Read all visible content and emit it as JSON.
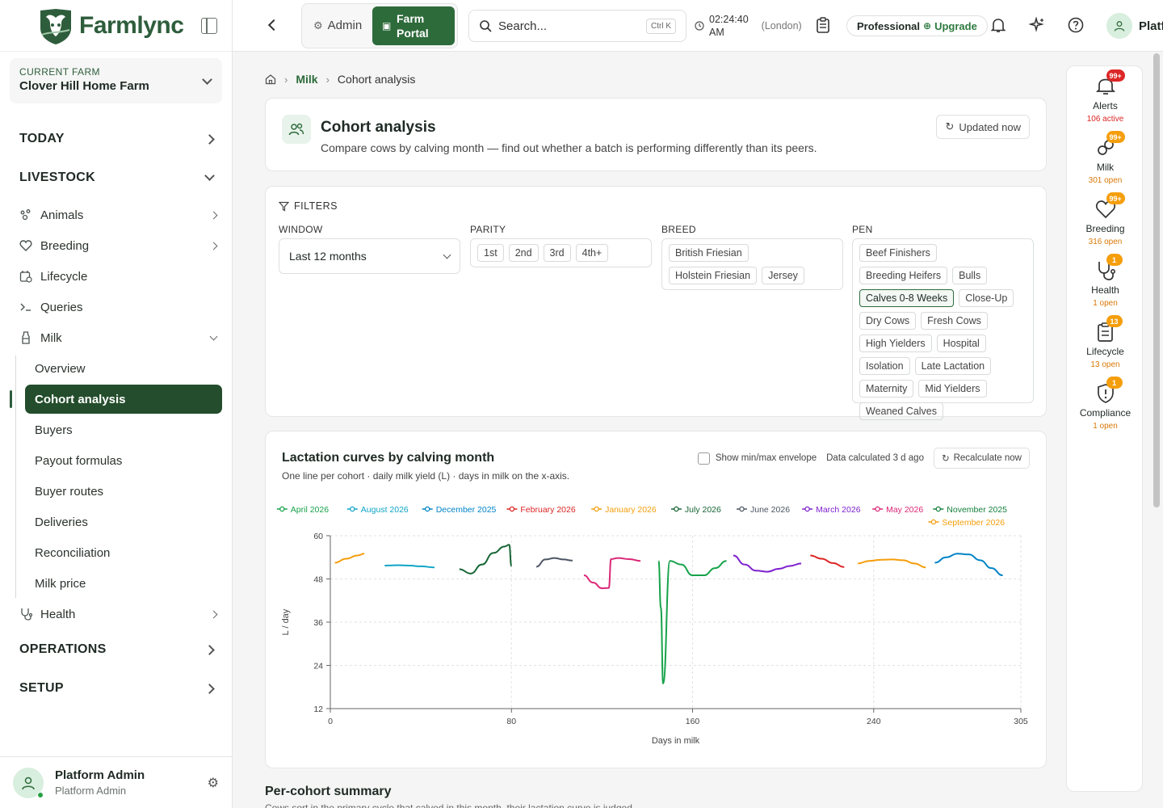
{
  "brand": {
    "name": "Farmlync"
  },
  "farm_picker": {
    "label": "CURRENT FARM",
    "value": "Clover Hill Home Farm"
  },
  "nav": {
    "today": "TODAY",
    "livestock": "LIVESTOCK",
    "items": [
      {
        "label": "Animals",
        "icon": "paw-icon"
      },
      {
        "label": "Breeding",
        "icon": "heart-icon"
      },
      {
        "label": "Lifecycle",
        "icon": "calendar-icon"
      },
      {
        "label": "Queries",
        "icon": "terminal-icon"
      },
      {
        "label": "Milk",
        "icon": "milk-bottle-icon"
      },
      {
        "label": "Health",
        "icon": "stethoscope-icon"
      }
    ],
    "milk_sub": [
      "Overview",
      "Cohort analysis",
      "Buyers",
      "Payout formulas",
      "Buyer routes",
      "Deliveries",
      "Reconciliation",
      "Milk price"
    ],
    "operations": "OPERATIONS",
    "setup": "SETUP"
  },
  "user": {
    "name": "Platform Admin",
    "role": "Platform Admin"
  },
  "topbar": {
    "admin": "Admin",
    "farm_portal_line1": "Farm",
    "farm_portal_line2": "Portal",
    "search_placeholder": "Search...",
    "search_kbd": "Ctrl K",
    "time_line1": "02:24:40",
    "time_line2": "AM",
    "timezone": "(London)",
    "plan": "Professional",
    "upgrade": "Upgrade",
    "user_chip": "Platf"
  },
  "breadcrumb": {
    "section": "Milk",
    "page": "Cohort analysis"
  },
  "header": {
    "title": "Cohort analysis",
    "subtitle": "Compare cows by calving month — find out whether a batch is performing differently than its peers.",
    "updated": "Updated now"
  },
  "filters": {
    "title": "FILTERS",
    "window_label": "WINDOW",
    "window_value": "Last 12 months",
    "parity_label": "PARITY",
    "parity": [
      "1st",
      "2nd",
      "3rd",
      "4th+"
    ],
    "breed_label": "BREED",
    "breeds": [
      "British Friesian",
      "Holstein Friesian",
      "Jersey"
    ],
    "pen_label": "PEN",
    "pens": [
      "Beef Finishers",
      "Breeding Heifers",
      "Bulls",
      "Calves 0-8 Weeks",
      "Close-Up",
      "Dry Cows",
      "Fresh Cows",
      "High Yielders",
      "Hospital",
      "Isolation",
      "Late Lactation",
      "Maternity",
      "Mid Yielders",
      "Weaned Calves"
    ],
    "pen_selected": "Calves 0-8 Weeks"
  },
  "chart_card": {
    "title": "Lactation curves by calving month",
    "subtitle": "One line per cohort · daily milk yield (L) · days in milk on the x-axis.",
    "envelope_label": "Show min/max envelope",
    "calc_status": "Data calculated 3 d ago",
    "recalc": "Recalculate now"
  },
  "chart_data": {
    "type": "line",
    "xlabel": "Days in milk",
    "ylabel": "L / day",
    "xlim": [
      0,
      305
    ],
    "ylim": [
      12,
      60
    ],
    "xticks": [
      0,
      80,
      160,
      240,
      305
    ],
    "yticks": [
      12,
      24,
      36,
      48,
      60
    ],
    "grid": true,
    "legend_position": "top",
    "series": [
      {
        "name": "April 2026",
        "color": "#16a34a",
        "x": [
          145,
          146,
          147,
          150,
          155,
          160,
          165,
          170,
          175
        ],
        "y": [
          53,
          40,
          19,
          53,
          52,
          49,
          49,
          51,
          53
        ]
      },
      {
        "name": "August 2026",
        "color": "#0ea5c6",
        "x": [
          24,
          30,
          35,
          40,
          46
        ],
        "y": [
          51.7,
          51.8,
          51.7,
          51.5,
          51.2
        ]
      },
      {
        "name": "December 2025",
        "color": "#0284c7",
        "x": [
          267,
          272,
          277,
          282,
          287,
          292,
          297
        ],
        "y": [
          52.5,
          54,
          55,
          54.8,
          53.2,
          51,
          49
        ]
      },
      {
        "name": "February 2026",
        "color": "#dc2626",
        "x": [
          212,
          217,
          222,
          227
        ],
        "y": [
          54.5,
          53.6,
          52.4,
          51.3
        ]
      },
      {
        "name": "January 2026",
        "color": "#f59e0b",
        "x": [
          233,
          238,
          243,
          248,
          253,
          258,
          263
        ],
        "y": [
          52.3,
          53,
          53.3,
          53.4,
          53.2,
          52.3,
          51.2
        ]
      },
      {
        "name": "July 2026",
        "color": "#166534",
        "x": [
          57,
          62,
          67,
          72,
          77,
          79,
          80
        ],
        "y": [
          50.7,
          49.5,
          52,
          55.2,
          57,
          57.5,
          51.5
        ]
      },
      {
        "name": "June 2026",
        "color": "#4b5563",
        "x": [
          91,
          95,
          99,
          103,
          107
        ],
        "y": [
          51.4,
          53.4,
          53.8,
          53.4,
          53.1
        ]
      },
      {
        "name": "March 2026",
        "color": "#7e22ce",
        "x": [
          178,
          183,
          188,
          193,
          198,
          203,
          208
        ],
        "y": [
          54.5,
          52,
          50.3,
          50,
          50.8,
          51.6,
          52.3
        ]
      },
      {
        "name": "May 2026",
        "color": "#db2777",
        "x": [
          112,
          116,
          120,
          123,
          124,
          127,
          132,
          137
        ],
        "y": [
          49,
          47,
          45.4,
          45.5,
          53.5,
          53.8,
          53.5,
          53
        ]
      },
      {
        "name": "November 2025",
        "color": "#15803d",
        "x": [],
        "y": []
      },
      {
        "name": "September 2026",
        "color": "#f59e0b",
        "x": [
          2,
          7,
          12,
          15
        ],
        "y": [
          52.5,
          53.6,
          54.5,
          55
        ]
      }
    ]
  },
  "rail": [
    {
      "label": "Alerts",
      "count": "106 active",
      "badge": "99+",
      "badge_color": "#dc2626",
      "count_color": "#dc2626",
      "icon": "bell-icon"
    },
    {
      "label": "Milk",
      "count": "301 open",
      "badge": "99+",
      "badge_color": "#f59e0b",
      "count_color": "#d97706",
      "icon": "milk-drops-icon"
    },
    {
      "label": "Breeding",
      "count": "316 open",
      "badge": "99+",
      "badge_color": "#f59e0b",
      "count_color": "#d97706",
      "icon": "heart-icon"
    },
    {
      "label": "Health",
      "count": "1 open",
      "badge": "1",
      "badge_color": "#f59e0b",
      "count_color": "#d97706",
      "icon": "stethoscope-icon"
    },
    {
      "label": "Lifecycle",
      "count": "13 open",
      "badge": "13",
      "badge_color": "#f59e0b",
      "count_color": "#d97706",
      "icon": "clipboard-icon"
    },
    {
      "label": "Compliance",
      "count": "1 open",
      "badge": "1",
      "badge_color": "#f59e0b",
      "count_color": "#d97706",
      "icon": "shield-alert-icon"
    }
  ],
  "summary": {
    "title": "Per-cohort summary",
    "subtitle": "Cows sort in the primary cycle that calved in this month, their lactation curve is judged..."
  }
}
